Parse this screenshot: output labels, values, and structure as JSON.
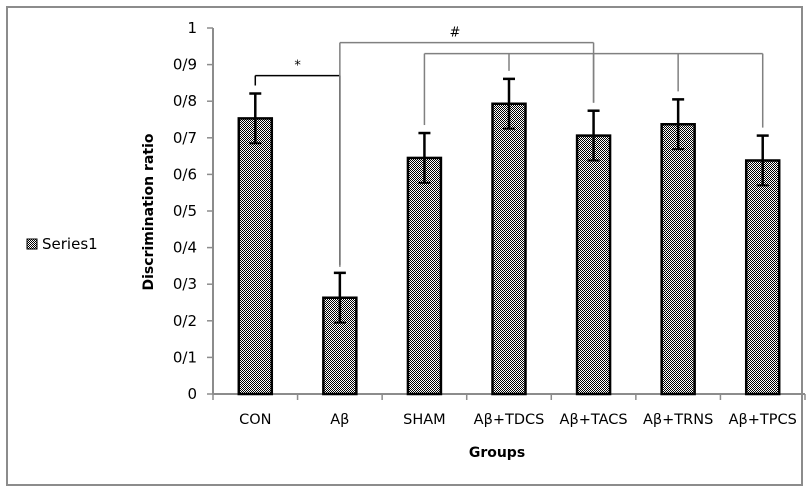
{
  "chart_data": {
    "type": "bar",
    "title": "",
    "xlabel": "Groups",
    "ylabel": "Discrimination ratio",
    "ylim": [
      0,
      1
    ],
    "y_ticks": [
      0,
      0.1,
      0.2,
      0.3,
      0.4,
      0.5,
      0.6,
      0.7,
      0.8,
      0.9,
      1
    ],
    "y_tick_labels": [
      "0",
      "0/1",
      "0/2",
      "0/3",
      "0/4",
      "0/5",
      "0/6",
      "0/7",
      "0/8",
      "0/9",
      "1"
    ],
    "categories": [
      "CON",
      "Aβ",
      "SHAM",
      "Aβ+TDCS",
      "Aβ+TACS",
      "Aβ+TRNS",
      "Aβ+TPCS"
    ],
    "series": [
      {
        "name": "Series1",
        "values": [
          0.753,
          0.263,
          0.645,
          0.793,
          0.706,
          0.737,
          0.638
        ],
        "errors": [
          0.068,
          0.068,
          0.068,
          0.068,
          0.068,
          0.068,
          0.068
        ]
      }
    ],
    "legend": {
      "entries": [
        "Series1"
      ],
      "placement": "left"
    },
    "grid": false,
    "annotations": [
      {
        "label": "*",
        "from": "CON",
        "to": [
          "Aβ"
        ],
        "level": 0.87
      },
      {
        "label": "#",
        "from": "Aβ",
        "to": [
          "Aβ+TACS"
        ],
        "level": 0.96
      },
      {
        "label": "",
        "from": "SHAM",
        "to": [
          "Aβ+TDCS",
          "Aβ+TRNS",
          "Aβ+TPCS",
          "Aβ+TACS"
        ],
        "level": 0.93
      }
    ]
  },
  "colors": {
    "bar_fill_dark": "#000000",
    "bar_fill_light": "#ffffff",
    "axis": "#8c8c8c",
    "bracket": "#000000",
    "bracket_gray": "#808080"
  }
}
